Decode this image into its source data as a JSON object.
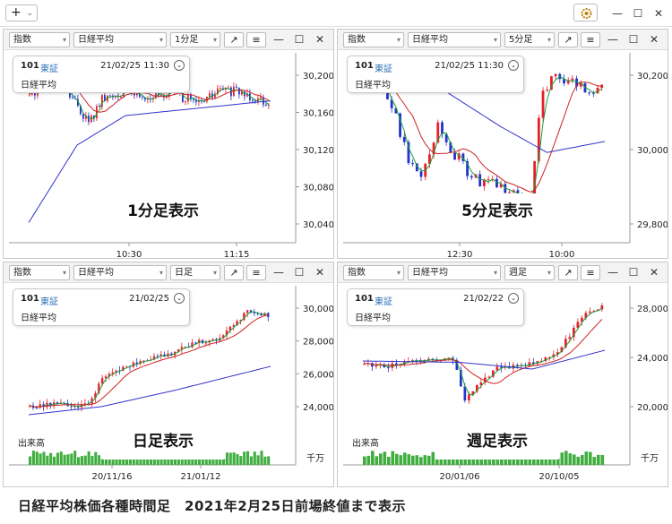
{
  "toolbar": {
    "add_label": "+",
    "add_chevron": "⌄",
    "gear_icon": "gear-icon",
    "min": "—",
    "max": "☐",
    "close": "✕"
  },
  "panel_controls": {
    "expand_icon": "↗",
    "menu_icon": "≡",
    "minimize": "—",
    "maximize": "☐",
    "close": "✕",
    "info_chevron": "⌄",
    "dropdown_arrow": "▾"
  },
  "colors": {
    "up": "#e8202b",
    "down": "#2233cc",
    "ma_short": "#1aa03a",
    "ma_mid": "#cc2222",
    "ma_long": "#3333cc",
    "volume": "#3fae3f"
  },
  "panels": [
    {
      "id": "p1",
      "type_select": "指数",
      "index_select": "日経平均",
      "period_select": "1分足",
      "code": "101",
      "exchange": "東証",
      "datetime": "21/02/25 11:30",
      "name": "日経平均",
      "label": "1分足表示",
      "x_labels": [
        "10:30",
        "11:15"
      ],
      "y_labels": [
        "30,200",
        "30,160",
        "30,120",
        "30,080",
        "30,040"
      ]
    },
    {
      "id": "p2",
      "type_select": "指数",
      "index_select": "日経平均",
      "period_select": "5分足",
      "code": "101",
      "exchange": "東証",
      "datetime": "21/02/25 11:30",
      "name": "日経平均",
      "label": "5分足表示",
      "x_labels": [
        "12:30",
        "10:00"
      ],
      "y_labels": [
        "30,200",
        "30,000",
        "29,800"
      ]
    },
    {
      "id": "p3",
      "type_select": "指数",
      "index_select": "日経平均",
      "period_select": "日足",
      "code": "101",
      "exchange": "東証",
      "datetime": "21/02/25",
      "name": "日経平均",
      "label": "日足表示",
      "x_labels": [
        "20/11/16",
        "21/01/12"
      ],
      "y_labels": [
        "30,000",
        "28,000",
        "26,000",
        "24,000"
      ],
      "volume_label": "出来高",
      "volume_unit": "千万"
    },
    {
      "id": "p4",
      "type_select": "指数",
      "index_select": "日経平均",
      "period_select": "週足",
      "code": "101",
      "exchange": "東証",
      "datetime": "21/02/22",
      "name": "日経平均",
      "label": "週足表示",
      "x_labels": [
        "20/01/06",
        "20/10/05"
      ],
      "y_labels": [
        "28,000",
        "24,000",
        "20,000"
      ],
      "volume_label": "出来高",
      "volume_unit": "千万"
    }
  ],
  "caption": "日経平均株価各種時間足　2021年2月25日前場終値まで表示"
}
